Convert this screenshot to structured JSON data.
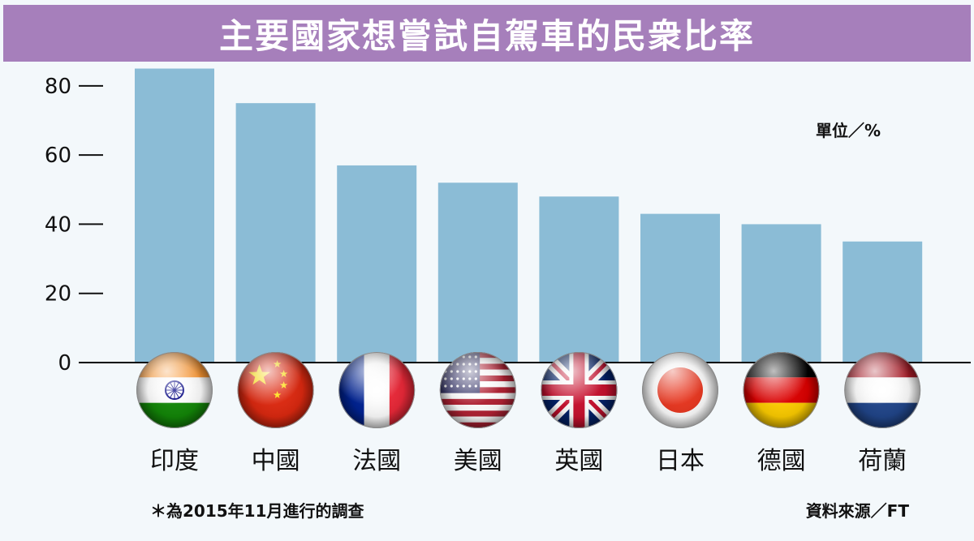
{
  "header": {
    "title": "主要國家想嘗試自駕車的民衆比率"
  },
  "unit_label": "單位／%",
  "footnote": "＊為2015年11月進行的調查",
  "source": "資料來源／FT",
  "colors": {
    "bar": "#8bbcd6",
    "header": "#a67fbb",
    "background": "#f3f8fb"
  },
  "chart_data": {
    "type": "bar",
    "title": "主要國家想嘗試自駕車的民衆比率",
    "categories": [
      "印度",
      "中國",
      "法國",
      "美國",
      "英國",
      "日本",
      "德國",
      "荷蘭"
    ],
    "values": [
      85,
      75,
      57,
      52,
      48,
      43,
      40,
      35
    ],
    "category_icons": [
      "india-flag",
      "china-flag",
      "france-flag",
      "usa-flag",
      "uk-flag",
      "japan-flag",
      "germany-flag",
      "netherlands-flag"
    ],
    "yticks": [
      "0",
      "20",
      "40",
      "60",
      "80"
    ],
    "ylim": [
      0,
      87
    ],
    "grid": false,
    "legend": "none"
  }
}
